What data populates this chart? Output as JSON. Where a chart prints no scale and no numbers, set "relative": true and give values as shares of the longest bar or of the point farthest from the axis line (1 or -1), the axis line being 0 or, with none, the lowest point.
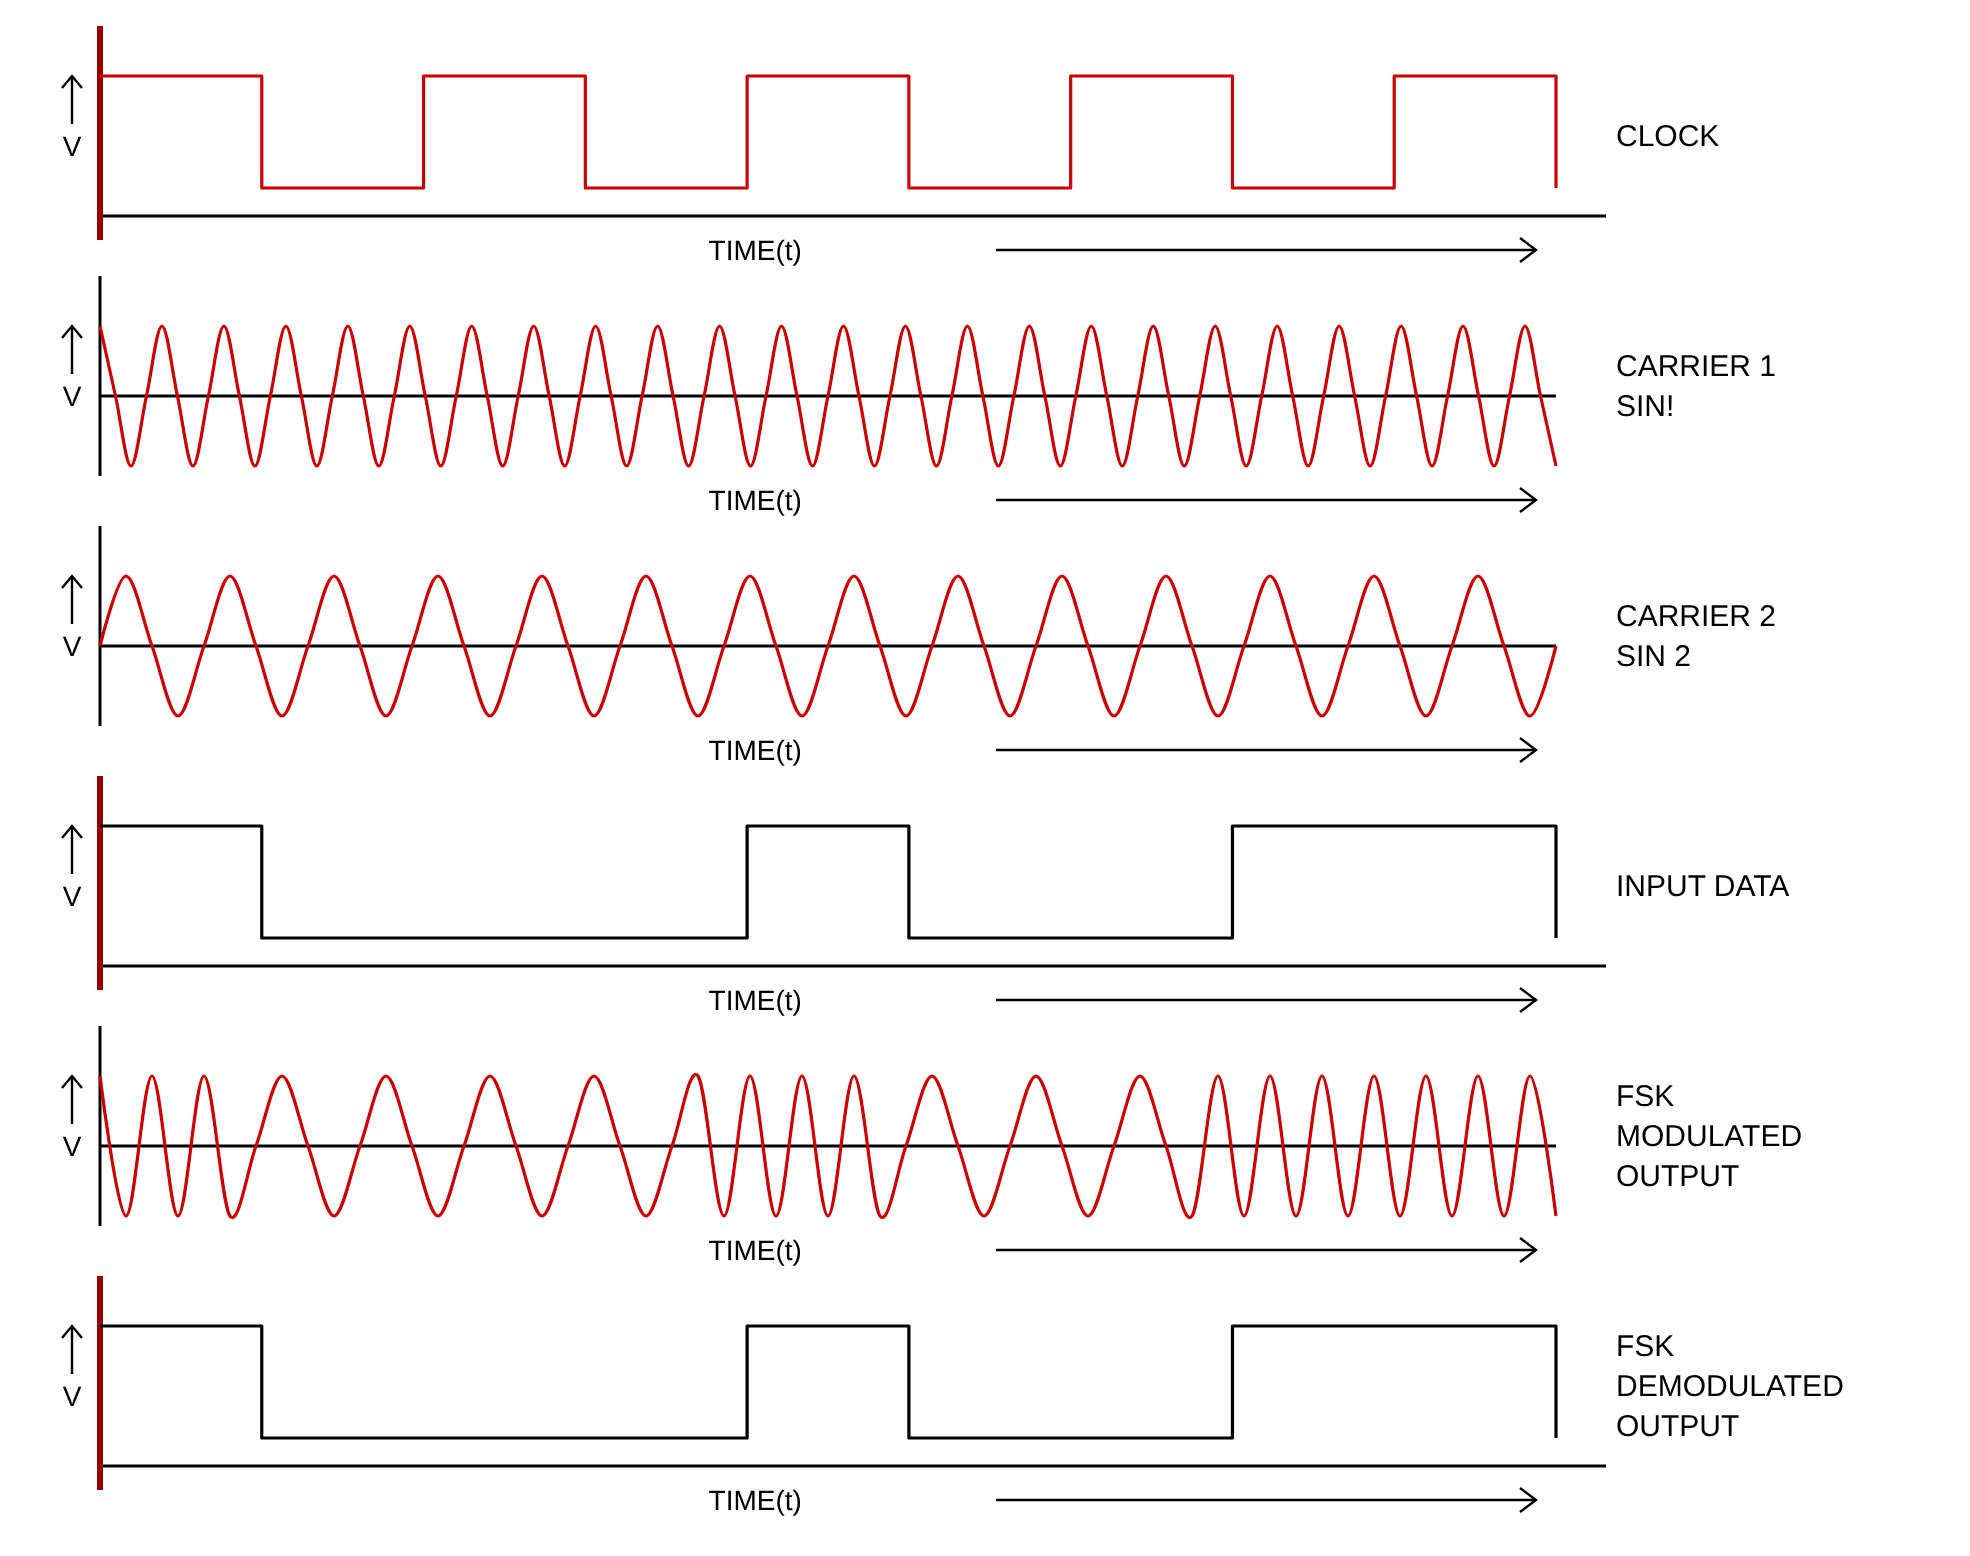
{
  "chart_data": [
    {
      "type": "step",
      "ylabel": "V",
      "xlabel": "TIME(t)",
      "relative": true,
      "categories": [
        null,
        null,
        null,
        null,
        null,
        null,
        null,
        null,
        null,
        null
      ],
      "series": [
        {
          "name": "CLOCK",
          "color": "#cc0000",
          "values": [
            1,
            0.2,
            1,
            0.2,
            1,
            0.2,
            1,
            0.2,
            1,
            0.2
          ]
        }
      ]
    },
    {
      "type": "line",
      "ylabel": "V",
      "xlabel": "TIME(t)",
      "relative": true,
      "categories": [
        null,
        null,
        null,
        null,
        null,
        null,
        null,
        null,
        null,
        null,
        null,
        null,
        null,
        null,
        null,
        null,
        null,
        null,
        null,
        null,
        null,
        null,
        null,
        null,
        null,
        null,
        null,
        null,
        null,
        null,
        null,
        null,
        null,
        null,
        null,
        null,
        null,
        null,
        null,
        null,
        null,
        null,
        null,
        null,
        null,
        null,
        null,
        null,
        null,
        null,
        null,
        null,
        null,
        null,
        null,
        null,
        null,
        null,
        null,
        null,
        null,
        null,
        null,
        null,
        null,
        null,
        null,
        null,
        null,
        null,
        null,
        null,
        null,
        null,
        null,
        null,
        null,
        null,
        null,
        null,
        null,
        null,
        null,
        null,
        null,
        null,
        null,
        null,
        null,
        null,
        null,
        null,
        null,
        null,
        null
      ],
      "series": [
        {
          "name": "CARRIER 1 SIN!",
          "color": "#cc0000",
          "values": [
            1,
            0,
            -1,
            0,
            1,
            0,
            -1,
            0,
            1,
            0,
            -1,
            0,
            1,
            0,
            -1,
            0,
            1,
            0,
            -1,
            0,
            1,
            0,
            -1,
            0,
            1,
            0,
            -1,
            0,
            1,
            0,
            -1,
            0,
            1,
            0,
            -1,
            0,
            1,
            0,
            -1,
            0,
            1,
            0,
            -1,
            0,
            1,
            0,
            -1,
            0,
            1,
            0,
            -1,
            0,
            1,
            0,
            -1,
            0,
            1,
            0,
            -1,
            0,
            1,
            0,
            -1,
            0,
            1,
            0,
            -1,
            0,
            1,
            0,
            -1,
            0,
            1,
            0,
            -1,
            0,
            1,
            0,
            -1,
            0,
            1,
            0,
            -1,
            0,
            1,
            0,
            -1,
            0,
            1,
            0,
            -1,
            0,
            1,
            0,
            -1
          ]
        }
      ]
    },
    {
      "type": "line",
      "ylabel": "V",
      "xlabel": "TIME(t)",
      "relative": true,
      "categories": [
        null,
        null,
        null,
        null,
        null,
        null,
        null,
        null,
        null,
        null,
        null,
        null,
        null,
        null,
        null,
        null,
        null,
        null,
        null,
        null,
        null,
        null,
        null,
        null,
        null,
        null,
        null,
        null,
        null,
        null,
        null,
        null,
        null,
        null,
        null,
        null,
        null,
        null,
        null,
        null,
        null,
        null,
        null,
        null,
        null,
        null,
        null,
        null,
        null,
        null,
        null,
        null,
        null,
        null,
        null,
        null,
        null
      ],
      "series": [
        {
          "name": "CARRIER 2 SIN 2",
          "color": "#cc0000",
          "values": [
            0,
            1,
            0,
            -1,
            0,
            1,
            0,
            -1,
            0,
            1,
            0,
            -1,
            0,
            1,
            0,
            -1,
            0,
            1,
            0,
            -1,
            0,
            1,
            0,
            -1,
            0,
            1,
            0,
            -1,
            0,
            1,
            0,
            -1,
            0,
            1,
            0,
            -1,
            0,
            1,
            0,
            -1,
            0,
            1,
            0,
            -1,
            0,
            1,
            0,
            -1,
            0,
            1,
            0,
            -1,
            0,
            1,
            0,
            -1,
            0
          ]
        }
      ]
    },
    {
      "type": "step",
      "ylabel": "V",
      "xlabel": "TIME(t)",
      "relative": true,
      "categories": [
        null,
        null,
        null,
        null,
        null,
        null,
        null,
        null,
        null,
        null
      ],
      "series": [
        {
          "name": "INPUT DATA",
          "color": "#000000",
          "values": [
            1,
            0.2,
            0.2,
            0.2,
            1,
            0.2,
            0.2,
            1,
            1,
            0.2
          ]
        }
      ]
    },
    {
      "type": "line",
      "ylabel": "V",
      "xlabel": "TIME(t)",
      "relative": true,
      "categories": [
        null,
        null,
        null,
        null,
        null,
        null,
        null,
        null,
        null,
        null,
        null,
        null,
        null,
        null,
        null,
        null,
        null,
        null,
        null,
        null,
        null,
        null,
        null,
        null,
        null,
        null,
        null,
        null,
        null,
        null,
        null,
        null,
        null,
        null,
        null,
        null,
        null,
        null,
        null,
        null,
        null,
        null,
        null,
        null,
        null,
        null,
        null,
        null,
        null,
        null,
        null,
        null,
        null,
        null,
        null,
        null,
        null
      ],
      "series": [
        {
          "name": "FSK MODULATED OUTPUT",
          "color": "#cc0000",
          "values": [
            1,
            -1,
            1,
            -1,
            1,
            -1,
            0,
            1,
            0,
            -1,
            0,
            1,
            0,
            -1,
            0,
            1,
            0,
            -1,
            0,
            1,
            0,
            -1,
            0,
            1,
            -1,
            1,
            -1,
            1,
            -1,
            1,
            -1,
            0,
            1,
            0,
            -1,
            0,
            1,
            0,
            -1,
            0,
            1,
            0,
            -1,
            1,
            -1,
            1,
            -1,
            1,
            -1,
            1,
            -1,
            1,
            -1,
            1,
            -1,
            1,
            -1
          ]
        }
      ]
    },
    {
      "type": "step",
      "ylabel": "V",
      "xlabel": "TIME(t)",
      "relative": true,
      "categories": [
        null,
        null,
        null,
        null,
        null,
        null,
        null,
        null,
        null,
        null
      ],
      "series": [
        {
          "name": "FSK DEMODULATED OUTPUT",
          "color": "#000000",
          "values": [
            1,
            0.2,
            0.2,
            0.2,
            1,
            0.2,
            0.2,
            1,
            1,
            0.2
          ]
        }
      ]
    }
  ]
}
